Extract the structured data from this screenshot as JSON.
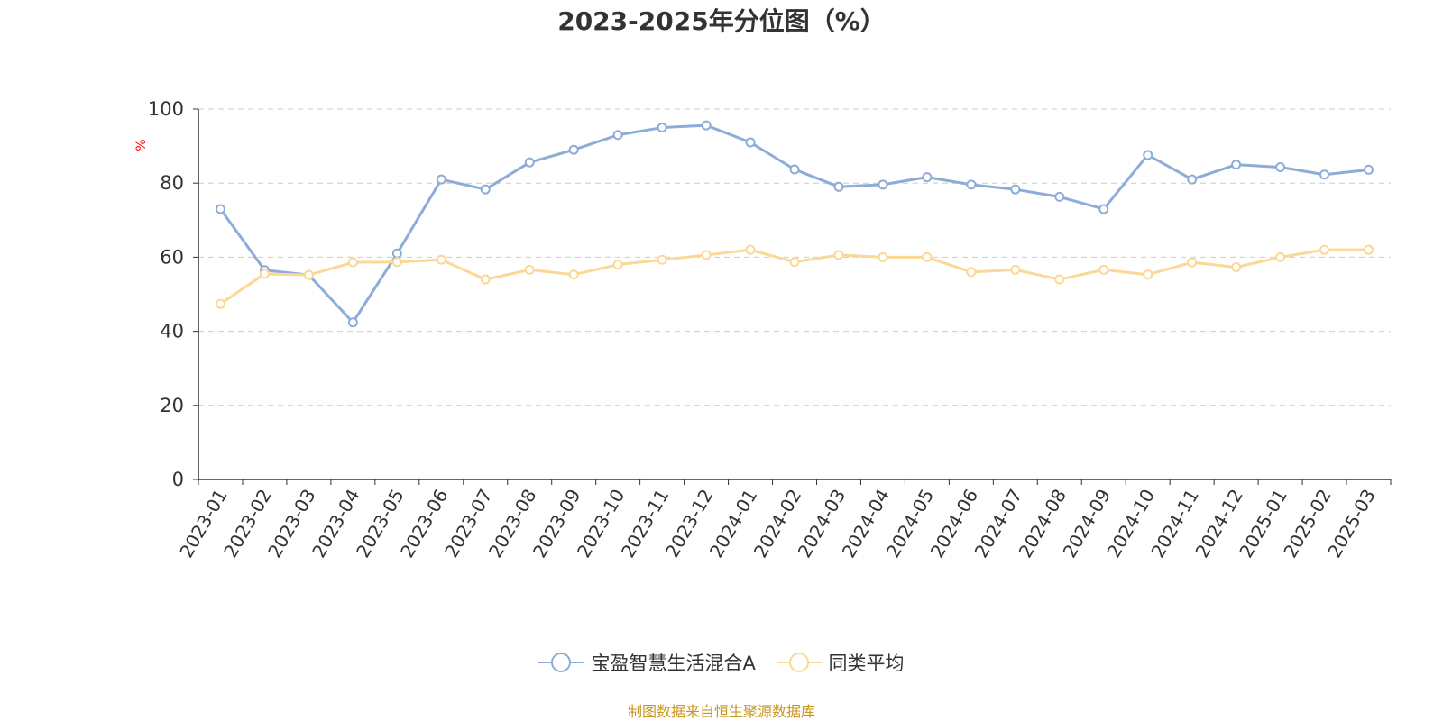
{
  "chart_data": {
    "type": "line",
    "title": "2023-2025年分位图（%）",
    "ylabel": "%",
    "ylim": [
      0,
      100
    ],
    "yticks": [
      0,
      20,
      40,
      60,
      80,
      100
    ],
    "grid": true,
    "legend_position": "bottom",
    "categories": [
      "2023-01",
      "2023-02",
      "2023-03",
      "2023-04",
      "2023-05",
      "2023-06",
      "2023-07",
      "2023-08",
      "2023-09",
      "2023-10",
      "2023-11",
      "2023-12",
      "2024-01",
      "2024-02",
      "2024-03",
      "2024-04",
      "2024-05",
      "2024-06",
      "2024-07",
      "2024-08",
      "2024-09",
      "2024-10",
      "2024-11",
      "2024-12",
      "2025-01",
      "2025-02",
      "2025-03"
    ],
    "series": [
      {
        "name": "宝盈智慧生活混合A",
        "color": "#8eacd8",
        "values": [
          73,
          56.5,
          55.2,
          42.4,
          61,
          81,
          78.3,
          85.6,
          89,
          93,
          95,
          95.6,
          91,
          83.7,
          79,
          79.6,
          81.6,
          79.6,
          78.3,
          76.3,
          73,
          87.6,
          81,
          85,
          84.3,
          82.3,
          83.6
        ]
      },
      {
        "name": "同类平均",
        "color": "#fcd896",
        "values": [
          47.4,
          55.5,
          55.2,
          58.6,
          58.7,
          59.3,
          54,
          56.6,
          55.3,
          58,
          59.3,
          60.6,
          62,
          58.7,
          60.6,
          60,
          60,
          56,
          56.6,
          54,
          56.6,
          55.3,
          58.6,
          57.3,
          60,
          62,
          62
        ]
      }
    ]
  },
  "source_text": "制图数据来自恒生聚源数据库",
  "colors": {
    "axis": "#333333",
    "grid": "#cccccc",
    "ylabel": "#ff0000",
    "source": "#c8961e"
  }
}
